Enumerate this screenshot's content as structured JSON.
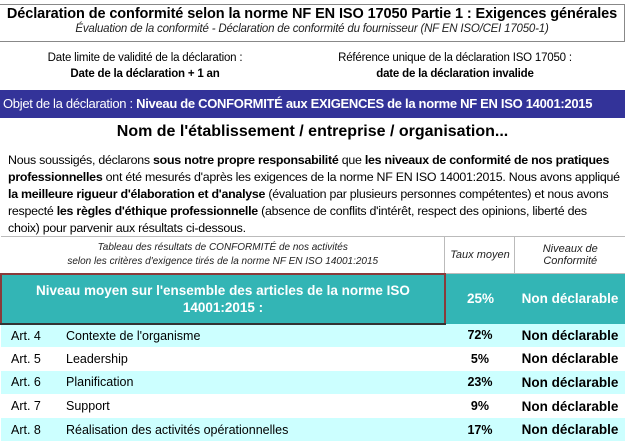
{
  "header": {
    "title": "Déclaration de conformité selon la norme NF EN ISO 17050 Partie 1 : Exigences générales",
    "subtitle": "Évaluation de la conformité - Déclaration de conformité du fournisseur (NF EN ISO/CEI 17050-1)"
  },
  "validity": {
    "label": "Date limite de validité de la déclaration :",
    "value": "Date de la déclaration + 1 an"
  },
  "reference": {
    "label": "Référence unique de la déclaration ISO 17050 :",
    "value": "date de la déclaration invalide"
  },
  "banner": {
    "prefix": "Objet de la déclaration : ",
    "text": "Niveau de CONFORMITÉ aux EXIGENCES de la norme NF EN ISO 14001:2015",
    "color": "#333399"
  },
  "organization": "Nom de l'établissement / entreprise / organisation...",
  "paragraph": [
    {
      "t": "Nous soussigés, déclarons ",
      "b": false
    },
    {
      "t": "sous notre propre responsabilité",
      "b": true
    },
    {
      "t": " que ",
      "b": false
    },
    {
      "t": "les niveaux de conformité de nos pratiques professionnelles",
      "b": true
    },
    {
      "t": " ont été mesurés d'après les exigences de la norme NF EN ISO 14001:2015. Nous avons appliqué ",
      "b": false
    },
    {
      "t": "la meilleure rigueur d'élaboration et d'analyse",
      "b": true
    },
    {
      "t": " (évaluation par plusieurs personnes compétentes) et nous avons respecté ",
      "b": false
    },
    {
      "t": "les règles d'éthique professionnelle",
      "b": true
    },
    {
      "t": " (absence de conflits d'intérêt, respect des opinions, liberté des choix) pour parvenir aux résultats ci-dessous.",
      "b": false
    }
  ],
  "table": {
    "header": {
      "line1": "Tableau des résultats de CONFORMITÉ de nos activités",
      "line2": "selon les critères d'exigence tirés de la norme NF EN ISO 14001:2015",
      "rate": "Taux moyen",
      "level": "Niveaux de Conformité"
    },
    "summary": {
      "label": "Niveau moyen sur l'ensemble des articles de la norme ISO 14001:2015 :",
      "rate": "25%",
      "level": "Non déclarable",
      "color": "#33b5b5"
    },
    "rows": [
      {
        "art": "Art. 4",
        "name": "Contexte de l'organisme",
        "rate": "72%",
        "level": "Non déclarable"
      },
      {
        "art": "Art. 5",
        "name": "Leadership",
        "rate": "5%",
        "level": "Non déclarable"
      },
      {
        "art": "Art. 6",
        "name": "Planification",
        "rate": "23%",
        "level": "Non déclarable"
      },
      {
        "art": "Art. 7",
        "name": "Support",
        "rate": "9%",
        "level": "Non déclarable"
      },
      {
        "art": "Art. 8",
        "name": "Réalisation des activités opérationnelles",
        "rate": "17%",
        "level": "Non déclarable"
      }
    ]
  }
}
